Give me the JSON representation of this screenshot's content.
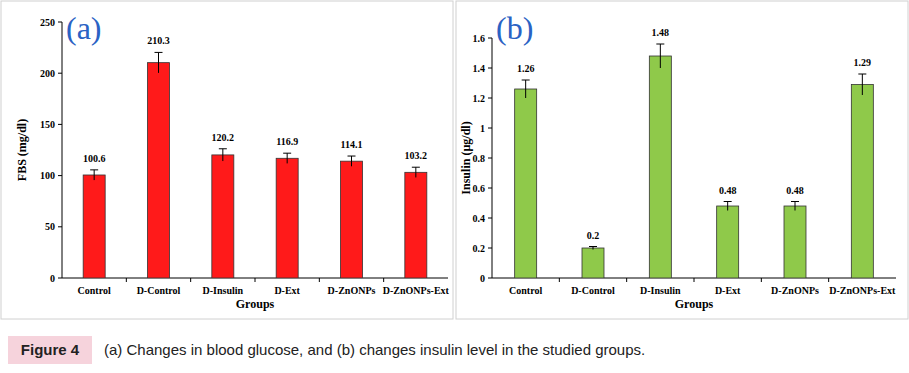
{
  "chart_data": [
    {
      "type": "bar",
      "title": "(a)",
      "x_label": "Groups",
      "y_label": "FBS (mg/dl)",
      "categories": [
        "Control",
        "D-Control",
        "D-Insulin",
        "D-Ext",
        "D-ZnONPs",
        "D-ZnONPs-Ext"
      ],
      "values": [
        100.6,
        210.3,
        120.2,
        116.9,
        114.1,
        103.2
      ],
      "errors": [
        5,
        10,
        6,
        5,
        5,
        5
      ],
      "color": "#ff1a1a",
      "ylim": [
        0,
        250
      ],
      "yticks": [
        0,
        50,
        100,
        150,
        200,
        250
      ],
      "grid": false,
      "data_labels": true
    },
    {
      "type": "bar",
      "title": "(b)",
      "x_label": "Groups",
      "y_label": "Insulin (µg/dl)",
      "categories": [
        "Control",
        "D-Control",
        "D-Insulin",
        "D-Ext",
        "D-ZnONPs",
        "D-ZnONPs-Ext"
      ],
      "values": [
        1.26,
        0.2,
        1.48,
        0.48,
        0.48,
        1.29
      ],
      "errors": [
        0.06,
        0.01,
        0.08,
        0.03,
        0.03,
        0.07
      ],
      "color": "#8fc94a",
      "ylim": [
        0,
        1.6
      ],
      "yticks": [
        0,
        0.2,
        0.4,
        0.6,
        0.8,
        1,
        1.2,
        1.4,
        1.6
      ],
      "grid": false,
      "data_labels": true
    }
  ],
  "caption": {
    "label": "Figure 4",
    "text": "(a) Changes in blood glucose, and (b) changes insulin level in the studied groups."
  }
}
